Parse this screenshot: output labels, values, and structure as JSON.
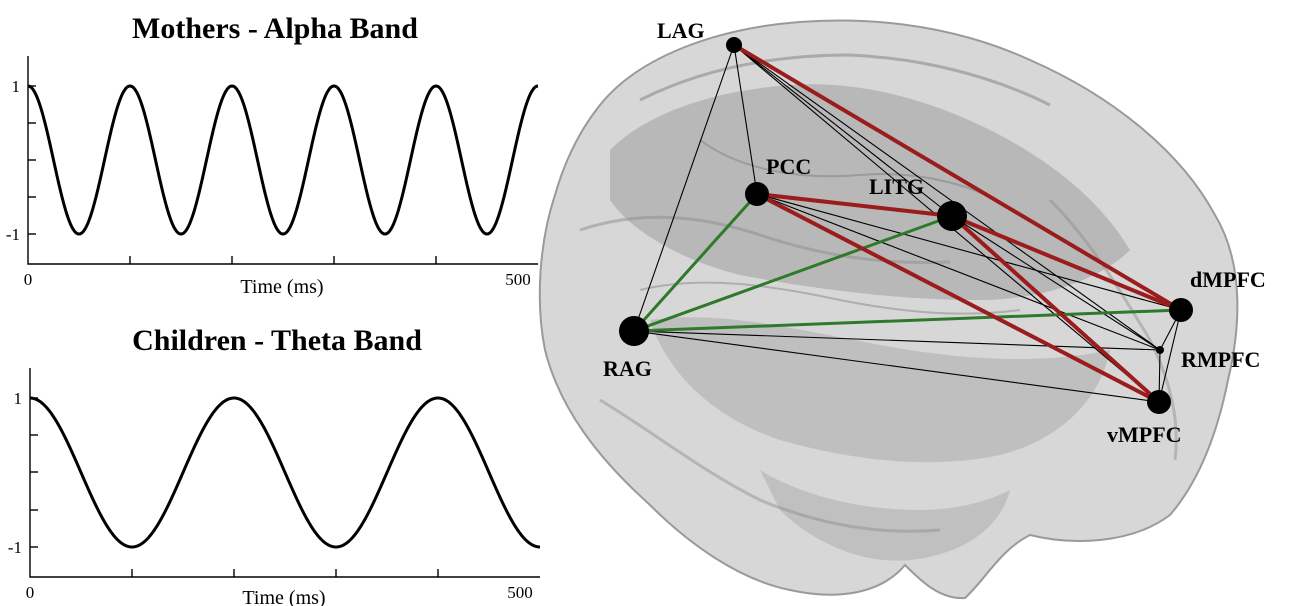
{
  "chart_data": [
    {
      "type": "line",
      "title": "Mothers - Alpha Band",
      "xlabel": "Time (ms)",
      "x_tick_labels": [
        "0",
        "500"
      ],
      "y_tick_labels": [
        "1",
        "-1"
      ],
      "xlim": [
        0,
        500
      ],
      "ylim": [
        -1,
        1
      ],
      "function": "cosine",
      "frequency_hz": 10,
      "amplitude": 1
    },
    {
      "type": "line",
      "title": "Children - Theta Band",
      "xlabel": "Time (ms)",
      "x_tick_labels": [
        "0",
        "500"
      ],
      "y_tick_labels": [
        "1",
        "-1"
      ],
      "xlim": [
        0,
        500
      ],
      "ylim": [
        -1,
        1
      ],
      "function": "cosine",
      "frequency_hz": 5,
      "amplitude": 1
    }
  ],
  "network": {
    "colors": {
      "red": "#9b1c1c",
      "green": "#2f7a2a",
      "black": "#000000",
      "brain": "#b9b9b9"
    },
    "nodes": [
      {
        "id": "LAG",
        "label": "LAG"
      },
      {
        "id": "PCC",
        "label": "PCC"
      },
      {
        "id": "LITG",
        "label": "LITG"
      },
      {
        "id": "RAG",
        "label": "RAG"
      },
      {
        "id": "dMPFC",
        "label": "dMPFC"
      },
      {
        "id": "RMPFC",
        "label": "RMPFC"
      },
      {
        "id": "vMPFC",
        "label": "vMPFC"
      }
    ],
    "edges": [
      {
        "from": "LAG",
        "to": "dMPFC",
        "color": "red"
      },
      {
        "from": "PCC",
        "to": "LITG",
        "color": "red"
      },
      {
        "from": "PCC",
        "to": "vMPFC",
        "color": "red"
      },
      {
        "from": "LITG",
        "to": "dMPFC",
        "color": "red"
      },
      {
        "from": "LITG",
        "to": "vMPFC",
        "color": "red"
      },
      {
        "from": "PCC",
        "to": "RAG",
        "color": "green"
      },
      {
        "from": "LITG",
        "to": "RAG",
        "color": "green"
      },
      {
        "from": "RAG",
        "to": "dMPFC",
        "color": "green"
      },
      {
        "from": "LAG",
        "to": "PCC",
        "color": "black"
      },
      {
        "from": "LAG",
        "to": "RAG",
        "color": "black"
      },
      {
        "from": "LAG",
        "to": "LITG",
        "color": "black"
      },
      {
        "from": "LAG",
        "to": "RMPFC",
        "color": "black"
      },
      {
        "from": "LAG",
        "to": "vMPFC",
        "color": "black"
      },
      {
        "from": "PCC",
        "to": "dMPFC",
        "color": "black"
      },
      {
        "from": "PCC",
        "to": "RMPFC",
        "color": "black"
      },
      {
        "from": "LITG",
        "to": "RMPFC",
        "color": "black"
      },
      {
        "from": "RAG",
        "to": "RMPFC",
        "color": "black"
      },
      {
        "from": "RAG",
        "to": "vMPFC",
        "color": "black"
      },
      {
        "from": "dMPFC",
        "to": "RMPFC",
        "color": "black"
      },
      {
        "from": "dMPFC",
        "to": "vMPFC",
        "color": "black"
      },
      {
        "from": "RMPFC",
        "to": "vMPFC",
        "color": "black"
      }
    ]
  }
}
